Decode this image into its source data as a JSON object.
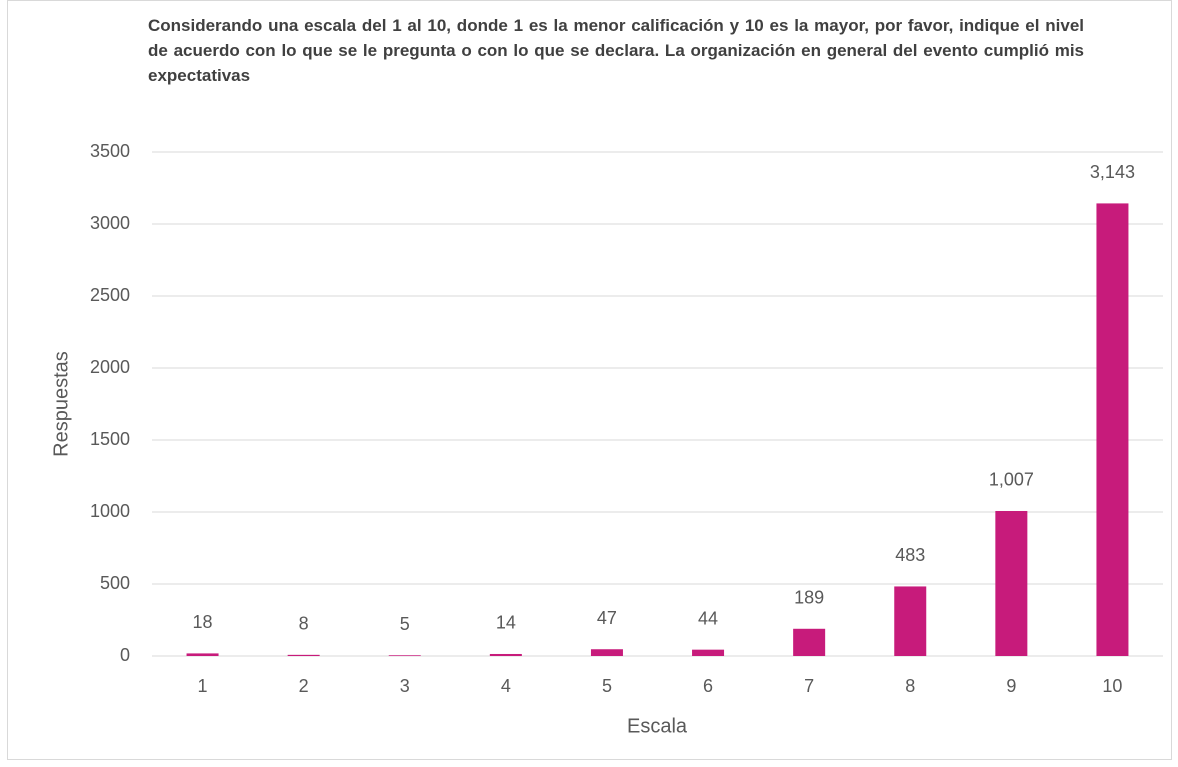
{
  "chart_data": {
    "type": "bar",
    "title": "Considerando una escala del 1 al 10, donde 1 es la menor calificación y 10 es la mayor, por favor, indique el nivel de acuerdo con lo que se le pregunta o con lo que se declara. La organización en general del evento cumplió mis expectativas",
    "x_label": "Escala",
    "y_label": "Respuestas",
    "categories": [
      "1",
      "2",
      "3",
      "4",
      "5",
      "6",
      "7",
      "8",
      "9",
      "10"
    ],
    "values": [
      18,
      8,
      5,
      14,
      47,
      44,
      189,
      483,
      1007,
      3143
    ],
    "value_labels": [
      "18",
      "8",
      "5",
      "14",
      "47",
      "44",
      "189",
      "483",
      "1,007",
      "3,143"
    ],
    "color": "#c71b7b",
    "ylim": [
      0,
      3500
    ],
    "yticks": [
      0,
      500,
      1000,
      1500,
      2000,
      2500,
      3000,
      3500
    ],
    "grid": true
  }
}
